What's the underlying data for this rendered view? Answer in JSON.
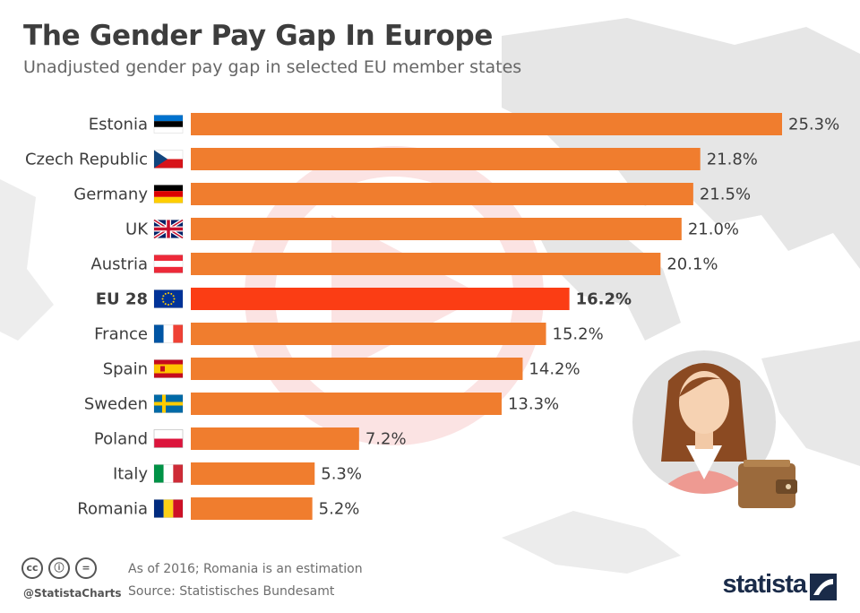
{
  "title": "The Gender Pay Gap In Europe",
  "subtitle": "Unadjusted gender pay gap in selected EU member states",
  "chart_data": {
    "type": "bar",
    "orientation": "horizontal",
    "title": "The Gender Pay Gap In Europe",
    "subtitle": "Unadjusted gender pay gap in selected EU member states",
    "categories": [
      "Estonia",
      "Czech Republic",
      "Germany",
      "UK",
      "Austria",
      "EU 28",
      "France",
      "Spain",
      "Sweden",
      "Poland",
      "Italy",
      "Romania"
    ],
    "values": [
      25.3,
      21.8,
      21.5,
      21.0,
      20.1,
      16.2,
      15.2,
      14.2,
      13.3,
      7.2,
      5.3,
      5.2
    ],
    "value_labels": [
      "25.3%",
      "21.8%",
      "21.5%",
      "21.0%",
      "20.1%",
      "16.2%",
      "15.2%",
      "14.2%",
      "13.3%",
      "7.2%",
      "5.3%",
      "5.2%"
    ],
    "highlight": "EU 28",
    "xlim": [
      0,
      25.3
    ],
    "unit": "%",
    "grid": false,
    "colors": {
      "bar": "#f07d2e",
      "highlight": "#fb3d14"
    }
  },
  "flags": {
    "Estonia": "flag-estonia-icon",
    "Czech Republic": "flag-czech-icon",
    "Germany": "flag-germany-icon",
    "UK": "flag-uk-icon",
    "Austria": "flag-austria-icon",
    "EU 28": "flag-eu-icon",
    "France": "flag-france-icon",
    "Spain": "flag-spain-icon",
    "Sweden": "flag-sweden-icon",
    "Poland": "flag-poland-icon",
    "Italy": "flag-italy-icon",
    "Romania": "flag-romania-icon"
  },
  "footer": {
    "note": "As of 2016; Romania is an estimation",
    "source": "Source: Statistisches Bundesamt",
    "handle": "@StatistaCharts",
    "brand": "statista"
  }
}
